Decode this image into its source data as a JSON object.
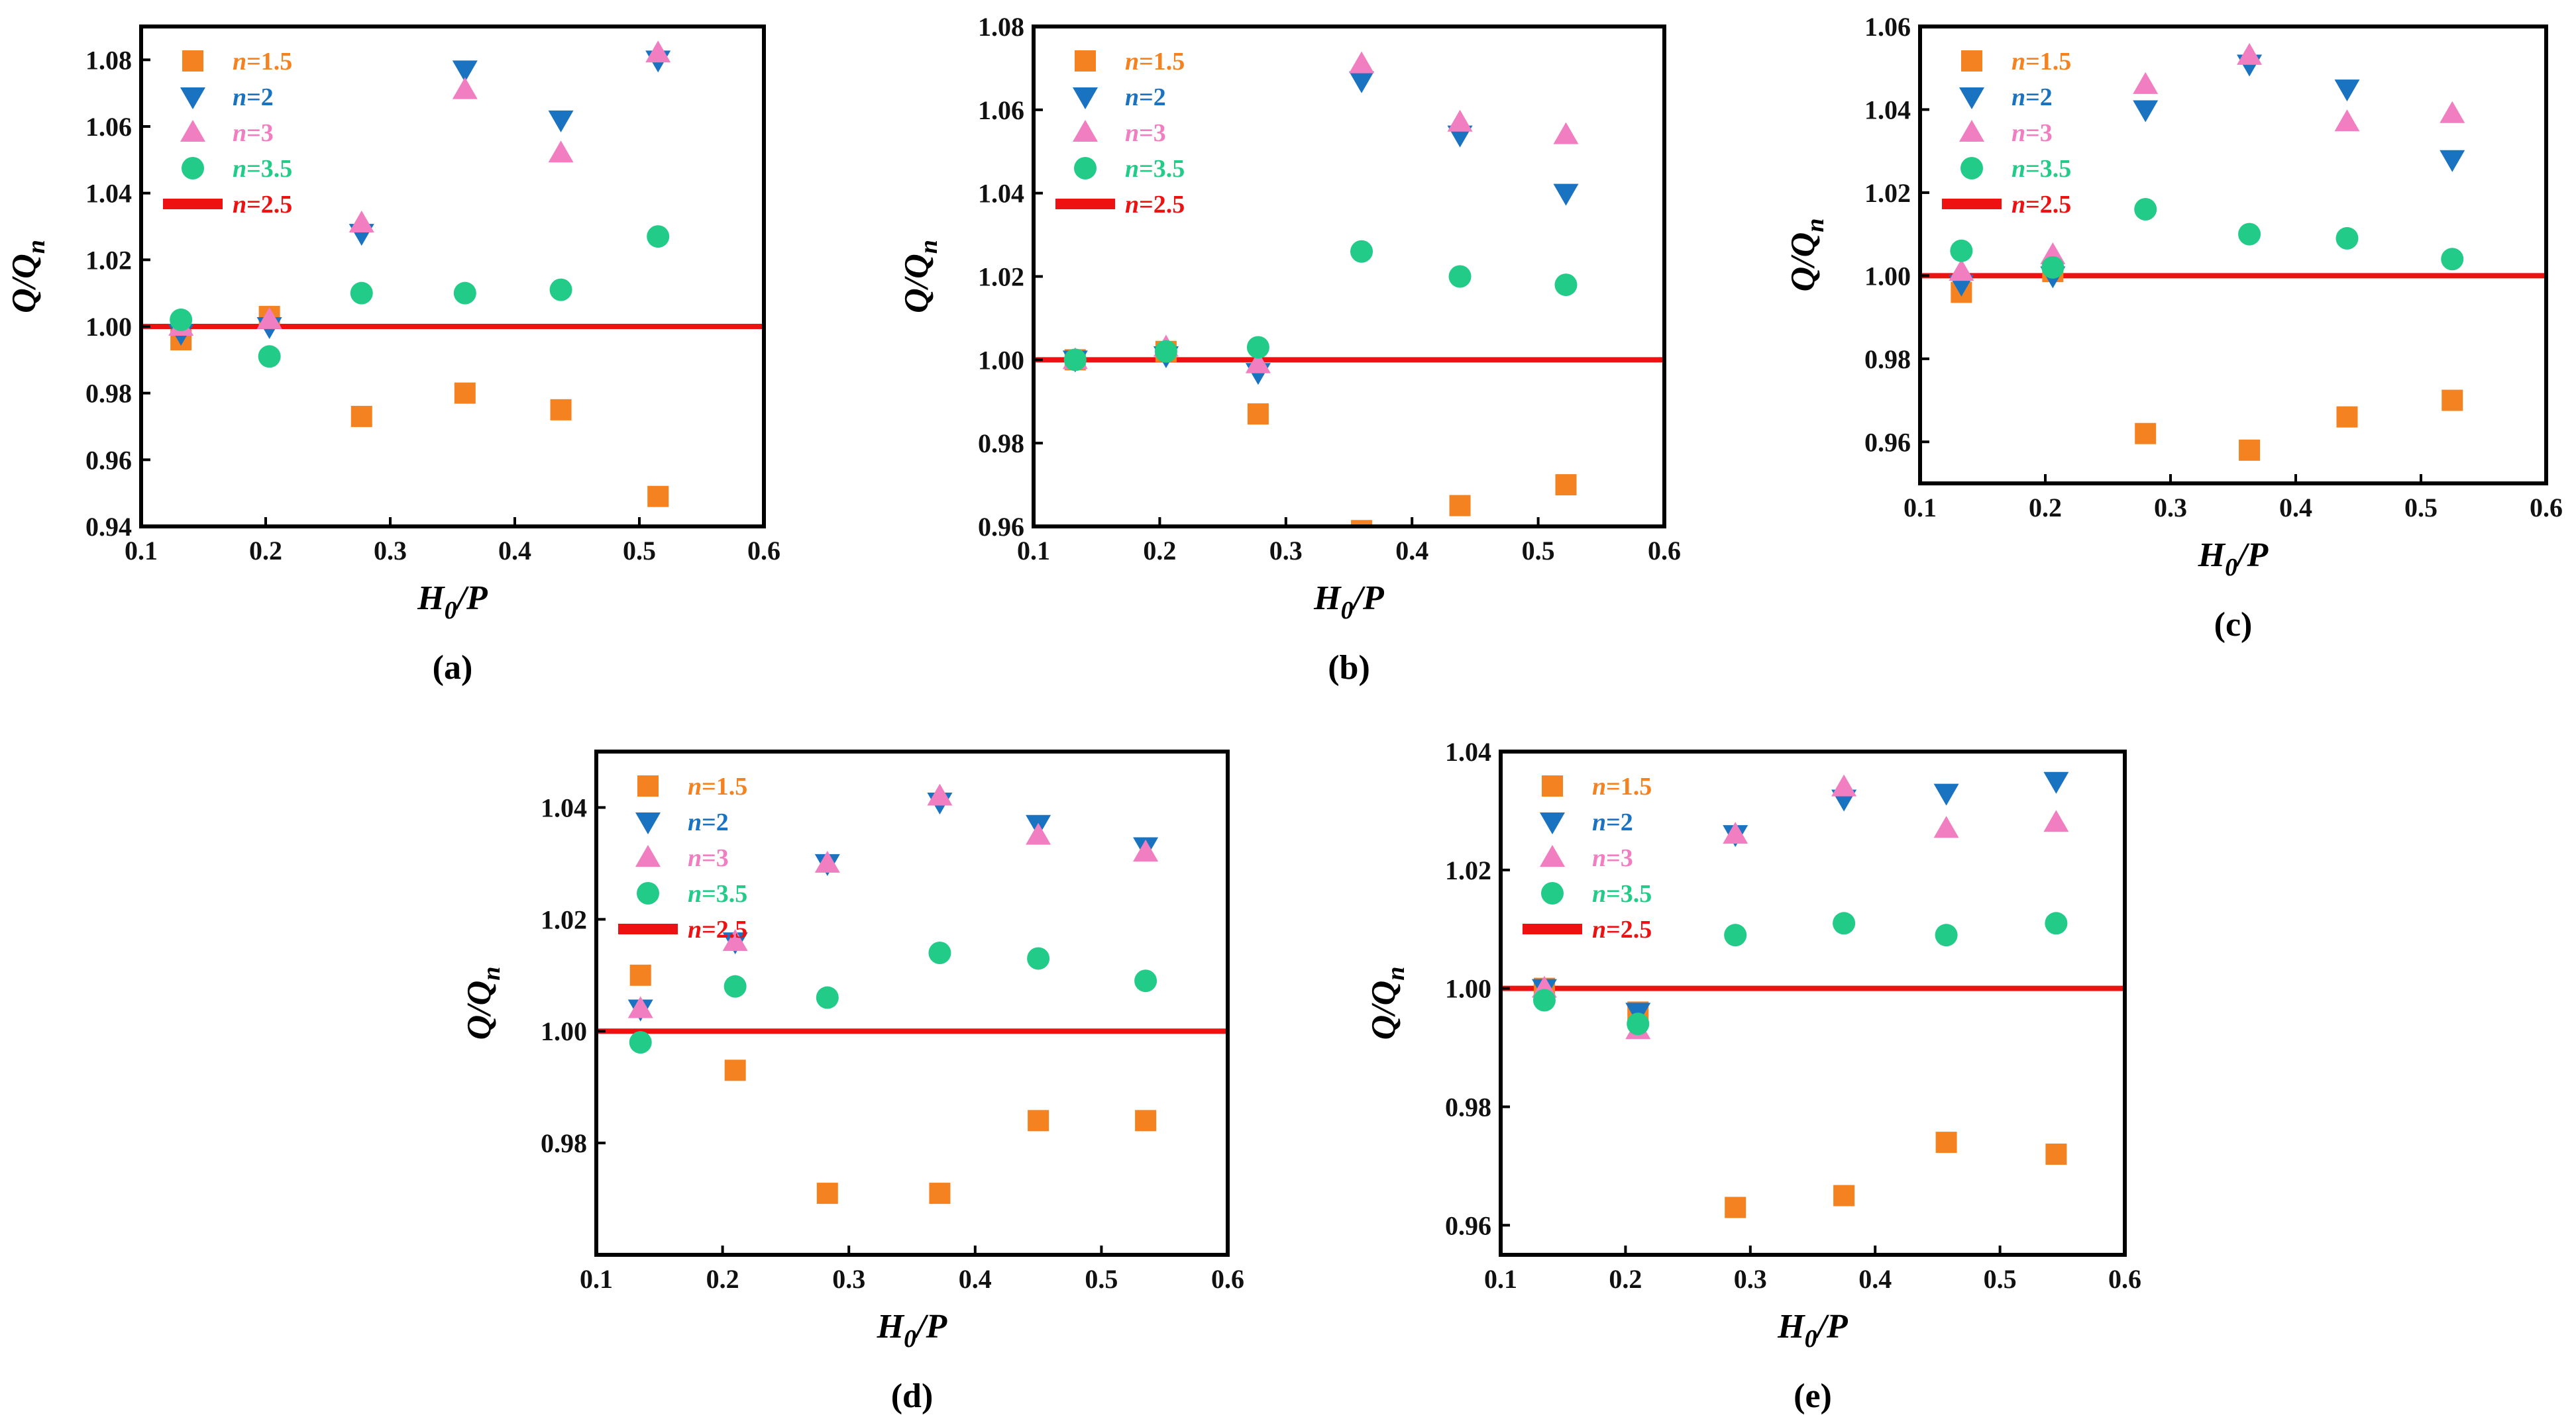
{
  "chart_data": [
    {
      "type": "scatter",
      "panel": "(a)",
      "xlabel_main": "H",
      "xlabel_sub": "0",
      "xlabel_tail": "/P",
      "ylabel_main": "Q/Q",
      "ylabel_sub": "n",
      "xlim": [
        0.1,
        0.6
      ],
      "ylim": [
        0.94,
        1.09
      ],
      "xticks": [
        0.1,
        0.2,
        0.3,
        0.4,
        0.5,
        0.6
      ],
      "yticks": [
        0.94,
        0.96,
        0.98,
        1.0,
        1.02,
        1.04,
        1.06,
        1.08
      ],
      "reference_line": {
        "name": "n=2.5",
        "y": 1.0
      },
      "x": [
        0.132,
        0.203,
        0.277,
        0.36,
        0.437,
        0.515
      ],
      "series": [
        {
          "name": "n=1.5",
          "values": [
            0.996,
            1.003,
            0.973,
            0.98,
            0.975,
            0.949
          ]
        },
        {
          "name": "n=2",
          "values": [
            0.998,
            1.0,
            1.028,
            1.077,
            1.062,
            1.08
          ]
        },
        {
          "name": "n=3",
          "values": [
            1.0,
            1.002,
            1.031,
            1.071,
            1.052,
            1.082
          ]
        },
        {
          "name": "n=3.5",
          "values": [
            1.002,
            0.991,
            1.01,
            1.01,
            1.011,
            1.027
          ]
        }
      ]
    },
    {
      "type": "scatter",
      "panel": "(b)",
      "xlabel_main": "H",
      "xlabel_sub": "0",
      "xlabel_tail": "/P",
      "ylabel_main": "Q/Q",
      "ylabel_sub": "n",
      "xlim": [
        0.1,
        0.6
      ],
      "ylim": [
        0.96,
        1.08
      ],
      "xticks": [
        0.1,
        0.2,
        0.3,
        0.4,
        0.5,
        0.6
      ],
      "yticks": [
        0.96,
        0.98,
        1.0,
        1.02,
        1.04,
        1.06,
        1.08
      ],
      "reference_line": {
        "name": "n=2.5",
        "y": 1.0
      },
      "x": [
        0.133,
        0.205,
        0.278,
        0.36,
        0.438,
        0.522
      ],
      "series": [
        {
          "name": "n=1.5",
          "values": [
            1.0,
            1.002,
            0.987,
            0.959,
            0.965,
            0.97
          ]
        },
        {
          "name": "n=2",
          "values": [
            1.0,
            1.001,
            0.997,
            1.067,
            1.054,
            1.04
          ]
        },
        {
          "name": "n=3",
          "values": [
            1.0,
            1.003,
            0.999,
            1.071,
            1.057,
            1.054
          ]
        },
        {
          "name": "n=3.5",
          "values": [
            1.0,
            1.002,
            1.003,
            1.026,
            1.02,
            1.018
          ]
        }
      ]
    },
    {
      "type": "scatter",
      "panel": "(c)",
      "xlabel_main": "H",
      "xlabel_sub": "0",
      "xlabel_tail": "/P",
      "ylabel_main": "Q/Q",
      "ylabel_sub": "n",
      "xlim": [
        0.1,
        0.6
      ],
      "ylim": [
        0.95,
        1.06
      ],
      "xticks": [
        0.1,
        0.2,
        0.3,
        0.4,
        0.5,
        0.6
      ],
      "yticks": [
        0.96,
        0.98,
        1.0,
        1.02,
        1.04,
        1.06
      ],
      "reference_line": {
        "name": "n=2.5",
        "y": 1.0
      },
      "x": [
        0.133,
        0.206,
        0.28,
        0.363,
        0.441,
        0.525
      ],
      "series": [
        {
          "name": "n=1.5",
          "values": [
            0.996,
            1.001,
            0.962,
            0.958,
            0.966,
            0.97
          ]
        },
        {
          "name": "n=2",
          "values": [
            0.998,
            1.0,
            1.04,
            1.051,
            1.045,
            1.028
          ]
        },
        {
          "name": "n=3",
          "values": [
            1.001,
            1.005,
            1.046,
            1.053,
            1.037,
            1.039
          ]
        },
        {
          "name": "n=3.5",
          "values": [
            1.006,
            1.002,
            1.016,
            1.01,
            1.009,
            1.004
          ]
        }
      ]
    },
    {
      "type": "scatter",
      "panel": "(d)",
      "xlabel_main": "H",
      "xlabel_sub": "0",
      "xlabel_tail": "/P",
      "ylabel_main": "Q/Q",
      "ylabel_sub": "n",
      "xlim": [
        0.1,
        0.6
      ],
      "ylim": [
        0.96,
        1.05
      ],
      "xticks": [
        0.1,
        0.2,
        0.3,
        0.4,
        0.5,
        0.6
      ],
      "yticks": [
        0.98,
        1.0,
        1.02,
        1.04
      ],
      "reference_line": {
        "name": "n=2.5",
        "y": 1.0
      },
      "x": [
        0.135,
        0.21,
        0.283,
        0.372,
        0.45,
        0.535
      ],
      "series": [
        {
          "name": "n=1.5",
          "values": [
            1.01,
            0.993,
            0.971,
            0.971,
            0.984,
            0.984
          ]
        },
        {
          "name": "n=2",
          "values": [
            1.004,
            1.016,
            1.03,
            1.041,
            1.037,
            1.033
          ]
        },
        {
          "name": "n=3",
          "values": [
            1.004,
            1.016,
            1.03,
            1.042,
            1.035,
            1.032
          ]
        },
        {
          "name": "n=3.5",
          "values": [
            0.998,
            1.008,
            1.006,
            1.014,
            1.013,
            1.009
          ]
        }
      ]
    },
    {
      "type": "scatter",
      "panel": "(e)",
      "xlabel_main": "H",
      "xlabel_sub": "0",
      "xlabel_tail": "/P",
      "ylabel_main": "Q/Q",
      "ylabel_sub": "n",
      "xlim": [
        0.1,
        0.6
      ],
      "ylim": [
        0.955,
        1.04
      ],
      "xticks": [
        0.1,
        0.2,
        0.3,
        0.4,
        0.5,
        0.6
      ],
      "yticks": [
        0.96,
        0.98,
        1.0,
        1.02,
        1.04
      ],
      "reference_line": {
        "name": "n=2.5",
        "y": 1.0
      },
      "x": [
        0.135,
        0.21,
        0.288,
        0.375,
        0.457,
        0.545
      ],
      "series": [
        {
          "name": "n=1.5",
          "values": [
            1.0,
            0.996,
            0.963,
            0.965,
            0.974,
            0.972
          ]
        },
        {
          "name": "n=2",
          "values": [
            1.0,
            0.996,
            1.026,
            1.032,
            1.033,
            1.035
          ]
        },
        {
          "name": "n=3",
          "values": [
            1.0,
            0.993,
            1.026,
            1.034,
            1.027,
            1.028
          ]
        },
        {
          "name": "n=3.5",
          "values": [
            0.998,
            0.994,
            1.009,
            1.011,
            1.009,
            1.011
          ]
        }
      ]
    }
  ],
  "legend": [
    {
      "key": "n1_5",
      "prefix": "n",
      "value": "=1.5",
      "color": "#f58220",
      "marker": "square"
    },
    {
      "key": "n2",
      "prefix": "n",
      "value": "=2",
      "color": "#1a73c1",
      "marker": "triangle-down"
    },
    {
      "key": "n3",
      "prefix": "n",
      "value": "=3",
      "color": "#f07ec0",
      "marker": "triangle-up"
    },
    {
      "key": "n3_5",
      "prefix": "n",
      "value": "=3.5",
      "color": "#22cc88",
      "marker": "circle"
    },
    {
      "key": "n2_5",
      "prefix": "n",
      "value": "=2.5",
      "color": "#ee1111",
      "marker": "line"
    }
  ],
  "colors": {
    "n1_5": "#f58220",
    "n2": "#1a73c1",
    "n3": "#f07ec0",
    "n3_5": "#22cc88",
    "ref": "#ee1111",
    "axis": "#000000"
  }
}
